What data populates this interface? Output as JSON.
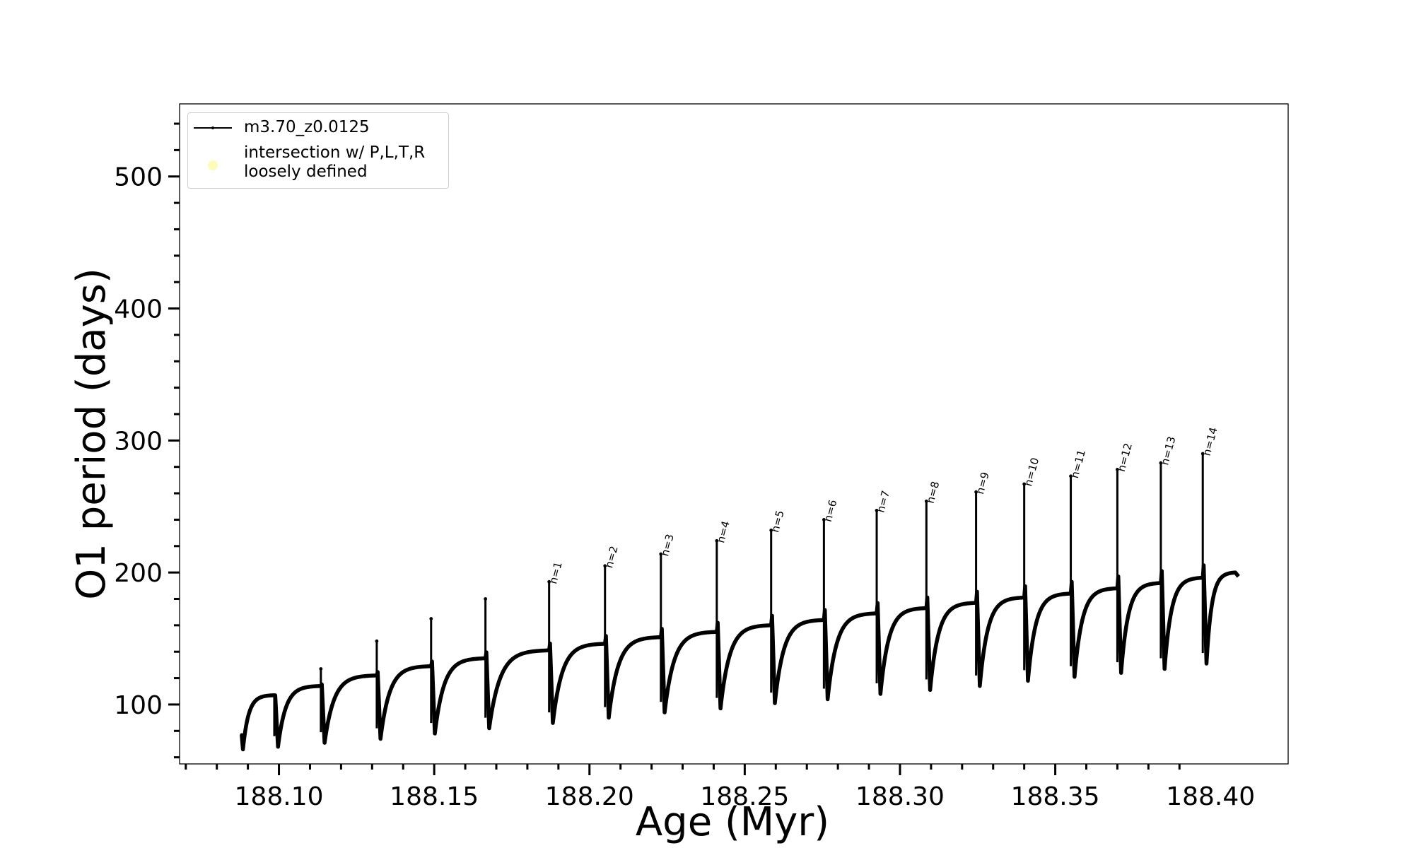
{
  "chart_data": {
    "type": "line",
    "xlabel": "Age (Myr)",
    "ylabel": "O1 period (days)",
    "xlim": [
      188.068,
      188.425
    ],
    "ylim": [
      55,
      555
    ],
    "x_ticks": [
      188.1,
      188.15,
      188.2,
      188.25,
      188.3,
      188.35,
      188.4
    ],
    "x_tick_labels": [
      "188.10",
      "188.15",
      "188.20",
      "188.25",
      "188.30",
      "188.35",
      "188.40"
    ],
    "y_ticks": [
      100,
      200,
      300,
      400,
      500
    ],
    "y_tick_labels": [
      "100",
      "200",
      "300",
      "400",
      "500"
    ],
    "grid": false,
    "legend_position": "top-left",
    "legend": [
      {
        "label": "m3.70_z0.0125",
        "color": "#000000",
        "marker": "line"
      },
      {
        "label": "intersection w/ P,L,T,R\nloosely defined",
        "color": "#fdfbb8",
        "marker": "circle"
      }
    ],
    "series": [
      {
        "name": "m3.70_z0.0125",
        "color": "#000000",
        "start": {
          "x": 188.088,
          "y": 77
        },
        "end": {
          "x": 188.409,
          "y": 197
        },
        "pulses": [
          {
            "x": 188.0985,
            "pre": 107,
            "peak": 107,
            "min": 68
          },
          {
            "x": 188.1135,
            "pre": 114,
            "peak": 127,
            "min": 71
          },
          {
            "x": 188.1315,
            "pre": 122,
            "peak": 148,
            "min": 74
          },
          {
            "x": 188.149,
            "pre": 129,
            "peak": 165,
            "min": 78
          },
          {
            "x": 188.1665,
            "pre": 135,
            "peak": 180,
            "min": 82
          },
          {
            "x": 188.187,
            "pre": 141,
            "peak": 193,
            "min": 86,
            "label": "n=1"
          },
          {
            "x": 188.205,
            "pre": 146,
            "peak": 205,
            "min": 90,
            "label": "n=2"
          },
          {
            "x": 188.223,
            "pre": 151,
            "peak": 214,
            "min": 94,
            "label": "n=3"
          },
          {
            "x": 188.241,
            "pre": 155,
            "peak": 224,
            "min": 97,
            "label": "n=4"
          },
          {
            "x": 188.2585,
            "pre": 160,
            "peak": 232,
            "min": 101,
            "label": "n=5"
          },
          {
            "x": 188.2755,
            "pre": 164,
            "peak": 240,
            "min": 104,
            "label": "n=6"
          },
          {
            "x": 188.2925,
            "pre": 169,
            "peak": 247,
            "min": 108,
            "label": "n=7"
          },
          {
            "x": 188.3085,
            "pre": 173,
            "peak": 254,
            "min": 111,
            "label": "n=8"
          },
          {
            "x": 188.3245,
            "pre": 177,
            "peak": 261,
            "min": 114,
            "label": "n=9"
          },
          {
            "x": 188.34,
            "pre": 181,
            "peak": 267,
            "min": 118,
            "label": "n=10"
          },
          {
            "x": 188.355,
            "pre": 184,
            "peak": 273,
            "min": 121,
            "label": "n=11"
          },
          {
            "x": 188.37,
            "pre": 188,
            "peak": 278,
            "min": 124,
            "label": "n=12"
          },
          {
            "x": 188.384,
            "pre": 192,
            "peak": 283,
            "min": 127,
            "label": "n=13"
          },
          {
            "x": 188.3975,
            "pre": 196,
            "peak": 290,
            "min": 131,
            "label": "n=14"
          }
        ],
        "end_plateau": 200
      }
    ]
  }
}
